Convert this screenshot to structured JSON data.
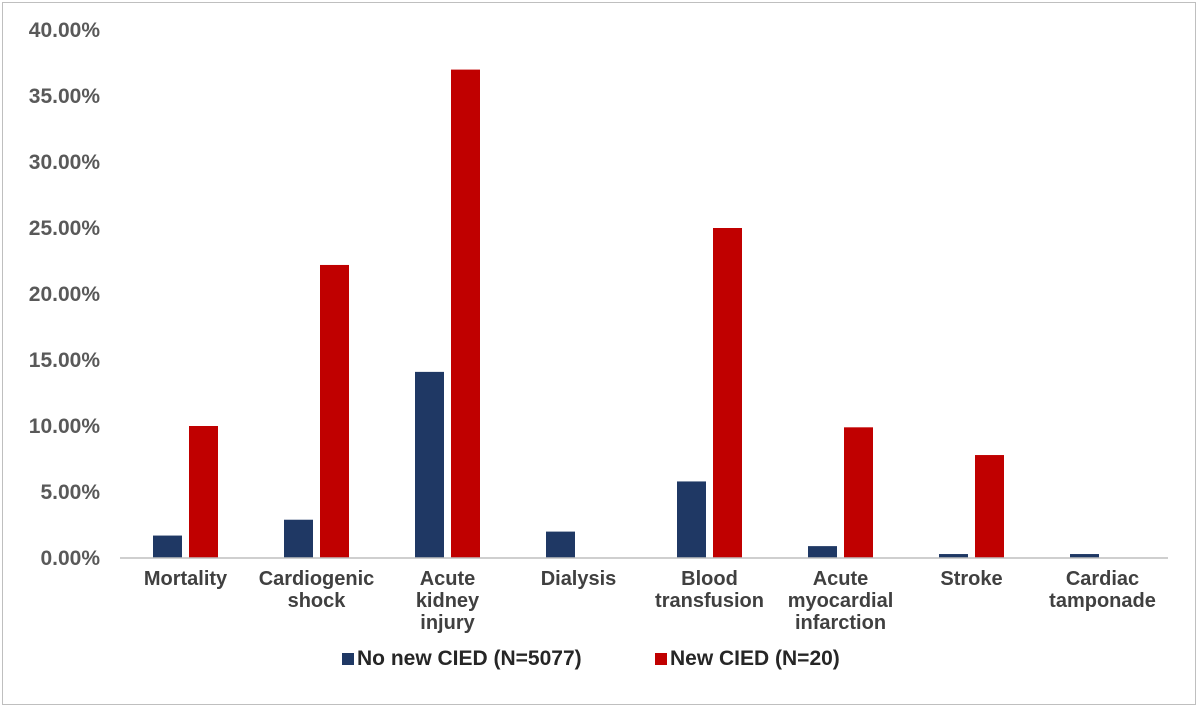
{
  "chart_data": {
    "type": "bar",
    "title": "",
    "xlabel": "",
    "ylabel": "",
    "ylim": [
      0,
      0.4
    ],
    "yticks": [
      "0.00%",
      "5.00%",
      "10.00%",
      "15.00%",
      "20.00%",
      "25.00%",
      "30.00%",
      "35.00%",
      "40.00%"
    ],
    "grid": false,
    "legend_position": "bottom",
    "categories": [
      [
        "Mortality"
      ],
      [
        "Cardiogenic",
        "shock"
      ],
      [
        "Acute",
        "kidney",
        "injury"
      ],
      [
        "Dialysis"
      ],
      [
        "Blood",
        "transfusion"
      ],
      [
        "Acute",
        "myocardial",
        "infarction"
      ],
      [
        "Stroke"
      ],
      [
        "Cardiac",
        "tamponade"
      ]
    ],
    "series": [
      {
        "name": "No new CIED (N=5077)",
        "color": "#1f3864",
        "values": [
          0.017,
          0.029,
          0.141,
          0.02,
          0.058,
          0.009,
          0.003,
          0.003
        ]
      },
      {
        "name": "New CIED (N=20)",
        "color": "#c00000",
        "values": [
          0.1,
          0.222,
          0.37,
          0.0,
          0.25,
          0.099,
          0.078,
          0.0
        ]
      }
    ]
  }
}
